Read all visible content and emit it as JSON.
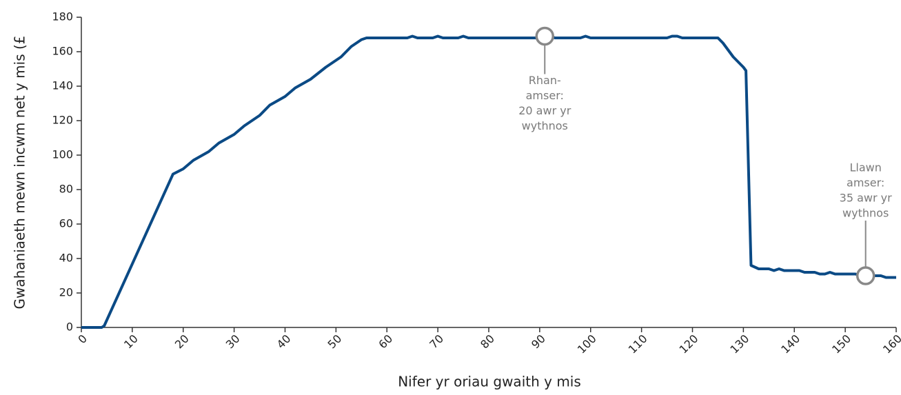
{
  "chart_data": {
    "type": "line",
    "xlabel": "Nifer yr oriau gwaith y mis",
    "ylabel": "Gwahaniaeth mewn incwm net y mis (£",
    "color": "#0b4a85",
    "x": [
      0,
      4,
      4.5,
      18,
      20,
      22,
      25,
      27,
      30,
      32,
      35,
      37,
      40,
      42,
      45,
      48,
      51,
      53,
      55,
      56,
      64,
      65,
      66,
      69,
      70,
      71,
      74,
      75,
      76,
      90,
      92,
      93,
      98,
      99,
      100,
      115,
      116,
      117,
      118,
      125,
      126,
      128,
      130,
      130.5,
      131.5,
      133,
      135,
      136,
      137,
      138,
      141,
      142,
      144,
      145,
      146,
      147,
      148,
      152,
      153,
      157,
      158,
      160
    ],
    "values": [
      0,
      0,
      1,
      89,
      92,
      97,
      102,
      107,
      112,
      117,
      123,
      129,
      134,
      139,
      144,
      151,
      157,
      163,
      167,
      168,
      168,
      169,
      168,
      168,
      169,
      168,
      168,
      169,
      168,
      168,
      169,
      168,
      168,
      169,
      168,
      168,
      169,
      169,
      168,
      168,
      165,
      157,
      151,
      149,
      36,
      34,
      34,
      33,
      34,
      33,
      33,
      32,
      32,
      31,
      31,
      32,
      31,
      31,
      30,
      30,
      29,
      29
    ],
    "xlim": [
      0,
      160
    ],
    "xticks": [
      0,
      10,
      20,
      30,
      40,
      50,
      60,
      70,
      80,
      90,
      100,
      110,
      120,
      130,
      140,
      150,
      160
    ],
    "ylim": [
      0,
      180
    ],
    "yticks": [
      0,
      20,
      40,
      60,
      80,
      100,
      120,
      140,
      160,
      180
    ],
    "grid": false,
    "annotations": [
      {
        "x": 91,
        "y": 169,
        "lines": [
          "Rhan-",
          "amser:",
          "20 awr yr",
          "wythnos"
        ]
      },
      {
        "x": 154,
        "y": 30,
        "lines": [
          "Llawn",
          "amser:",
          "35 awr yr",
          "wythnos"
        ]
      }
    ]
  }
}
